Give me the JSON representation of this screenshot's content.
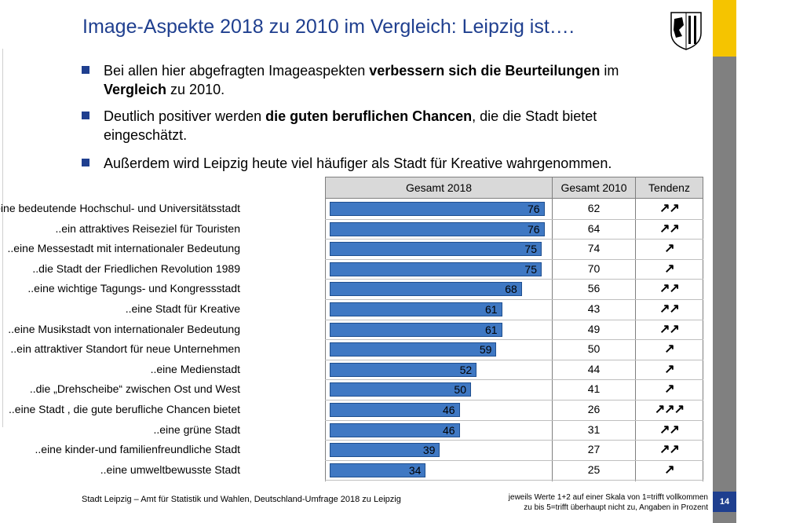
{
  "title": "Image-Aspekte 2018 zu 2010 im Vergleich: Leipzig ist….",
  "bullets": [
    {
      "parts": [
        "Bei allen hier abgefragten Imageaspekten ",
        "verbessern sich die Beurteilungen",
        " im ",
        "Vergleich",
        " zu 2010."
      ]
    },
    {
      "parts": [
        "Deutlich positiver werden ",
        "die guten beruflichen Chancen",
        ", die die Stadt bietet eingeschätzt."
      ]
    },
    {
      "parts": [
        "Außerdem wird Leipzig heute viel häufiger als Stadt für Kreative wahrgenommen."
      ]
    }
  ],
  "chart_data": {
    "type": "bar",
    "columns": {
      "gesamt2018": "Gesamt 2018",
      "gesamt2010": "Gesamt 2010",
      "tendenz": "Tendenz"
    },
    "categories": [
      "..eine bedeutende Hochschul- und Universitätsstadt",
      "..ein attraktives Reiseziel für Touristen",
      "..eine Messestadt mit internationaler Bedeutung",
      "..die Stadt der Friedlichen Revolution 1989",
      "..eine wichtige Tagungs- und Kongressstadt",
      "..eine Stadt für Kreative",
      "..eine Musikstadt von internationaler Bedeutung",
      "..ein attraktiver Standort für neue Unternehmen",
      "..eine Medienstadt",
      "..die „Drehscheibe“ zwischen Ost und West",
      "..eine Stadt , die gute berufliche Chancen bietet",
      "..eine grüne Stadt",
      "..eine kinder-und familienfreundliche Stadt",
      "..eine umweltbewusste Stadt"
    ],
    "values2018": [
      76,
      76,
      75,
      75,
      68,
      61,
      61,
      59,
      52,
      50,
      46,
      46,
      39,
      34
    ],
    "values2010": [
      62,
      64,
      74,
      70,
      56,
      43,
      49,
      50,
      44,
      41,
      26,
      31,
      27,
      25
    ],
    "tendenz": [
      "↗↗",
      "↗↗",
      "↗",
      "↗",
      "↗↗",
      "↗↗",
      "↗↗",
      "↗",
      "↗",
      "↗",
      "↗↗↗",
      "↗↗",
      "↗↗",
      "↗"
    ],
    "xlim": [
      0,
      100
    ],
    "bar_color": "#3f78c3"
  },
  "footer": {
    "left": "Stadt Leipzig – Amt für Statistik und Wahlen, Deutschland-Umfrage 2018 zu Leipzig",
    "right_line1": "jeweils Werte 1+2 auf einer Skala von 1=trifft vollkommen",
    "right_line2": "zu bis 5=trifft überhaupt nicht zu, Angaben in Prozent",
    "page": "14"
  },
  "colors": {
    "title": "#1f3f8f",
    "accent_yellow": "#f5c400",
    "side_gray": "#808080"
  }
}
